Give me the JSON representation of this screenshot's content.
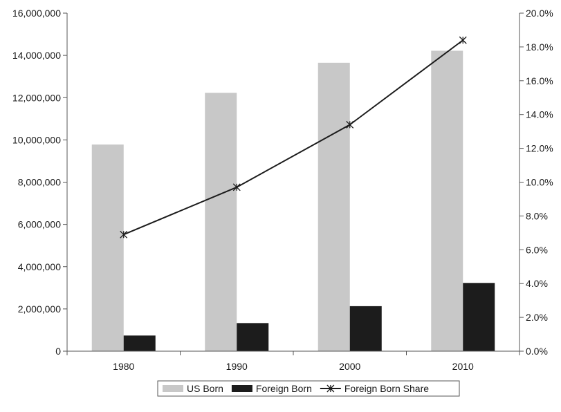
{
  "chart_data": {
    "type": "bar",
    "categories": [
      "1980",
      "1990",
      "2000",
      "2010"
    ],
    "series": [
      {
        "name": "US Born",
        "type": "bar",
        "axis": "left",
        "color": "#c8c8c8",
        "values": [
          9780000,
          12230000,
          13650000,
          14220000
        ]
      },
      {
        "name": "Foreign Born",
        "type": "bar",
        "axis": "left",
        "color": "#1c1c1c",
        "values": [
          740000,
          1330000,
          2130000,
          3230000
        ]
      },
      {
        "name": "Foreign Born Share",
        "type": "line",
        "axis": "right",
        "color": "#1c1c1c",
        "marker": "asterisk",
        "values": [
          6.9,
          9.7,
          13.4,
          18.4
        ]
      }
    ],
    "left_axis": {
      "range": [
        0,
        16000000
      ],
      "ticks": [
        0,
        2000000,
        4000000,
        6000000,
        8000000,
        10000000,
        12000000,
        14000000,
        16000000
      ],
      "tick_labels": [
        "0",
        "2,000,000",
        "4,000,000",
        "6,000,000",
        "8,000,000",
        "10,000,000",
        "12,000,000",
        "14,000,000",
        "16,000,000"
      ]
    },
    "right_axis": {
      "range": [
        0,
        20
      ],
      "unit": "%",
      "ticks": [
        0,
        2,
        4,
        6,
        8,
        10,
        12,
        14,
        16,
        18,
        20
      ],
      "tick_labels": [
        "0.0%",
        "2.0%",
        "4.0%",
        "6.0%",
        "8.0%",
        "10.0%",
        "12.0%",
        "14.0%",
        "16.0%",
        "18.0%",
        "20.0%"
      ]
    },
    "title": "",
    "xlabel": "",
    "ylabel": "",
    "grid": false,
    "legend_position": "bottom-center",
    "legend": [
      "US Born",
      "Foreign Born",
      "Foreign Born Share"
    ]
  }
}
